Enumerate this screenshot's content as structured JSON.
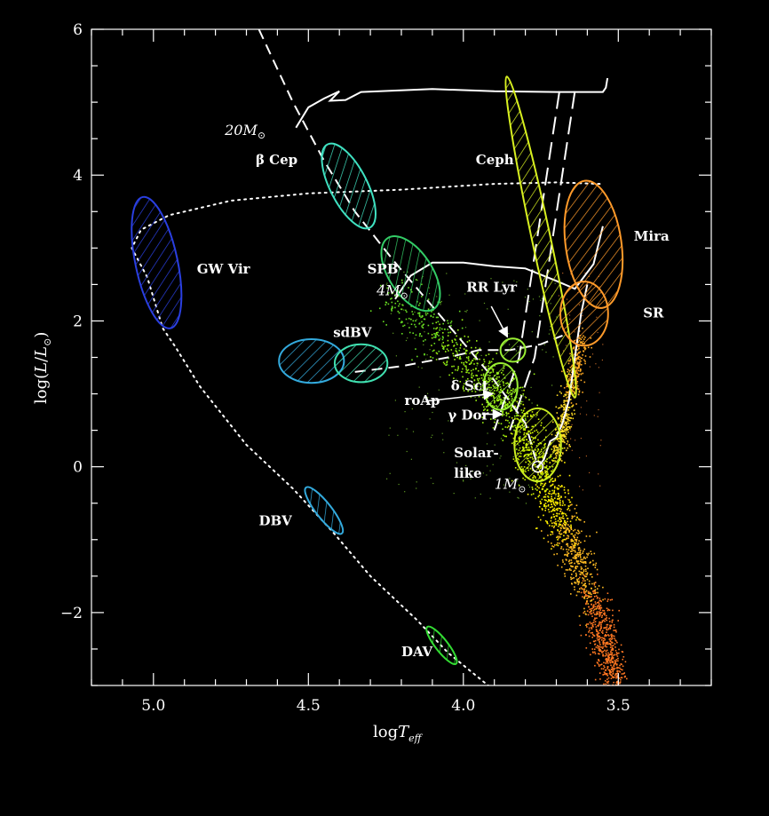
{
  "chart_data": {
    "type": "scatter",
    "title": "",
    "xlabel_main": "log",
    "xlabel_T": "T",
    "xlabel_sub": "eff",
    "ylabel_prefix": "log(",
    "ylabel_L": "L",
    "ylabel_slash": "/",
    "ylabel_Lsun": "L",
    "ylabel_suffix": ")",
    "xlim": [
      5.2,
      3.2
    ],
    "ylim": [
      -3.0,
      6.0
    ],
    "x_reversed": true,
    "x_ticks": [
      5.0,
      4.5,
      4.0,
      3.5
    ],
    "x_tick_labels": [
      "5.0",
      "4.5",
      "4.0",
      "3.5"
    ],
    "y_ticks": [
      -2,
      0,
      2,
      4,
      6
    ],
    "y_tick_labels": [
      "−2",
      "0",
      "2",
      "4",
      "6"
    ],
    "background": "#000000",
    "regions": [
      {
        "label": "GW Vir",
        "color": "#2a3fe0",
        "cx": 4.99,
        "cy": 2.8,
        "rx": 0.068,
        "ry": 0.92,
        "rot": -12
      },
      {
        "label": "β Cep",
        "color": "#3fe0c0",
        "cx": 4.37,
        "cy": 3.85,
        "rx": 0.06,
        "ry": 0.64,
        "rot": -27
      },
      {
        "label": "SPB",
        "color": "#33cc66",
        "cx": 4.17,
        "cy": 2.65,
        "rx": 0.07,
        "ry": 0.58,
        "rot": -33
      },
      {
        "label": "sdBV",
        "color": "#33aadd",
        "cx": 4.49,
        "cy": 1.45,
        "rx": 0.105,
        "ry": 0.3,
        "rot": 0
      },
      {
        "label": "sdBV",
        "color": "#40e0b0",
        "cx": 4.33,
        "cy": 1.42,
        "rx": 0.085,
        "ry": 0.26,
        "rot": 0
      },
      {
        "label": "Ceph",
        "color": "#d8f020",
        "cx": 3.75,
        "cy": 3.15,
        "rx": 0.03,
        "ry": 2.25,
        "rot": -12
      },
      {
        "label": "Mira",
        "color": "#ff9a2a",
        "cx": 3.58,
        "cy": 3.05,
        "rx": 0.09,
        "ry": 0.88,
        "rot": -8
      },
      {
        "label": "SR",
        "color": "#ff9a2a",
        "cx": 3.61,
        "cy": 2.1,
        "rx": 0.077,
        "ry": 0.44,
        "rot": 0
      },
      {
        "label": "RR Lyr",
        "color": "#99ee33",
        "cx": 3.84,
        "cy": 1.6,
        "rx": 0.04,
        "ry": 0.16,
        "rot": 0
      },
      {
        "label": "δ Sct",
        "color": "#99ee33",
        "cx": 3.88,
        "cy": 1.1,
        "rx": 0.055,
        "ry": 0.32,
        "rot": 0
      },
      {
        "label": "Solar-like",
        "color": "#ccee22",
        "cx": 3.76,
        "cy": 0.3,
        "rx": 0.075,
        "ry": 0.5,
        "rot": 0
      },
      {
        "label": "DBV",
        "color": "#33aadd",
        "cx": 4.45,
        "cy": -0.6,
        "rx": 0.025,
        "ry": 0.4,
        "rot": -38
      },
      {
        "label": "DAV",
        "color": "#33dd33",
        "cx": 4.07,
        "cy": -2.45,
        "rx": 0.02,
        "ry": 0.32,
        "rot": -38
      }
    ],
    "labels": [
      {
        "text": "GW Vir",
        "x": 4.86,
        "y": 2.65,
        "style": "bold"
      },
      {
        "text": "β Cep",
        "x": 4.67,
        "y": 4.15,
        "style": "bold"
      },
      {
        "text": "Ceph",
        "x": 3.96,
        "y": 4.15,
        "style": "bold"
      },
      {
        "text": "Mira",
        "x": 3.45,
        "y": 3.1,
        "style": "bold"
      },
      {
        "text": "SPB",
        "x": 4.31,
        "y": 2.65,
        "style": "bold"
      },
      {
        "text": "RR Lyr",
        "x": 3.99,
        "y": 2.4,
        "style": "bold"
      },
      {
        "text": "SR",
        "x": 3.42,
        "y": 2.05,
        "style": "bold"
      },
      {
        "text": "sdBV",
        "x": 4.42,
        "y": 1.78,
        "style": "bold"
      },
      {
        "text": "δ Sct",
        "x": 4.04,
        "y": 1.05,
        "style": "bold"
      },
      {
        "text": "roAp",
        "x": 4.19,
        "y": 0.85,
        "style": "bold"
      },
      {
        "text": "γ Dor",
        "x": 4.05,
        "y": 0.65,
        "style": "bold"
      },
      {
        "text": "Solar-",
        "x": 4.03,
        "y": 0.13,
        "style": "bold"
      },
      {
        "text": "like",
        "x": 4.03,
        "y": -0.15,
        "style": "bold"
      },
      {
        "text": "DBV",
        "x": 4.66,
        "y": -0.8,
        "style": "bold"
      },
      {
        "text": "DAV",
        "x": 4.2,
        "y": -2.6,
        "style": "bold"
      }
    ],
    "mass_labels": [
      {
        "num": "20",
        "sym": "M",
        "x": 4.77,
        "y": 4.55
      },
      {
        "num": "4",
        "sym": "M",
        "x": 4.28,
        "y": 2.35
      },
      {
        "num": "1",
        "sym": "M",
        "x": 3.9,
        "y": -0.3
      }
    ],
    "tracks": [
      {
        "name": "main-sequence",
        "style": "dashed",
        "points": [
          [
            4.66,
            6.0
          ],
          [
            4.55,
            5.0
          ],
          [
            4.45,
            4.2
          ],
          [
            4.35,
            3.5
          ],
          [
            4.22,
            2.8
          ],
          [
            4.1,
            2.2
          ],
          [
            4.0,
            1.7
          ],
          [
            3.92,
            1.3
          ],
          [
            3.86,
            0.95
          ],
          [
            3.8,
            0.6
          ],
          [
            3.76,
            0.0
          ]
        ]
      },
      {
        "name": "20Msun-track",
        "style": "solid",
        "points": [
          [
            4.54,
            4.65
          ],
          [
            4.5,
            4.93
          ],
          [
            4.45,
            5.05
          ],
          [
            4.4,
            5.15
          ],
          [
            4.43,
            5.02
          ],
          [
            4.38,
            5.03
          ],
          [
            4.33,
            5.14
          ],
          [
            4.1,
            5.18
          ],
          [
            3.9,
            5.15
          ],
          [
            3.7,
            5.14
          ],
          [
            3.55,
            5.14
          ],
          [
            3.54,
            5.2
          ],
          [
            3.535,
            5.33
          ]
        ]
      },
      {
        "name": "4Msun-track",
        "style": "solid",
        "points": [
          [
            4.22,
            2.3
          ],
          [
            4.17,
            2.62
          ],
          [
            4.1,
            2.8
          ],
          [
            4.0,
            2.8
          ],
          [
            3.9,
            2.75
          ],
          [
            3.8,
            2.72
          ],
          [
            3.7,
            2.55
          ],
          [
            3.64,
            2.44
          ],
          [
            3.58,
            2.78
          ],
          [
            3.55,
            3.3
          ]
        ]
      },
      {
        "name": "1Msun-track",
        "style": "solid",
        "points": [
          [
            3.76,
            0.0
          ],
          [
            3.74,
            0.1
          ],
          [
            3.72,
            0.35
          ],
          [
            3.7,
            0.4
          ],
          [
            3.68,
            0.6
          ],
          [
            3.66,
            0.9
          ],
          [
            3.64,
            1.5
          ],
          [
            3.62,
            2.1
          ],
          [
            3.6,
            2.5
          ]
        ]
      },
      {
        "name": "hb-track",
        "style": "dashed",
        "points": [
          [
            4.35,
            1.3
          ],
          [
            4.2,
            1.38
          ],
          [
            4.05,
            1.5
          ],
          [
            3.95,
            1.6
          ],
          [
            3.85,
            1.6
          ],
          [
            3.75,
            1.68
          ],
          [
            3.68,
            1.8
          ]
        ]
      },
      {
        "name": "wd-cooling",
        "style": "dotted",
        "points": [
          [
            3.56,
            3.88
          ],
          [
            3.7,
            3.9
          ],
          [
            3.9,
            3.88
          ],
          [
            4.2,
            3.8
          ],
          [
            4.5,
            3.75
          ],
          [
            4.75,
            3.65
          ],
          [
            4.95,
            3.45
          ],
          [
            5.04,
            3.25
          ],
          [
            5.07,
            3.0
          ],
          [
            5.02,
            2.6
          ],
          [
            4.97,
            1.9
          ],
          [
            4.93,
            1.65
          ],
          [
            4.85,
            1.1
          ],
          [
            4.7,
            0.3
          ],
          [
            4.55,
            -0.3
          ],
          [
            4.42,
            -0.9
          ],
          [
            4.3,
            -1.5
          ],
          [
            4.15,
            -2.1
          ],
          [
            4.05,
            -2.55
          ],
          [
            3.92,
            -3.0
          ]
        ]
      }
    ],
    "instability_strip": [
      {
        "points": [
          [
            3.69,
            5.15
          ],
          [
            3.82,
            1.5
          ],
          [
            3.9,
            0.5
          ]
        ]
      },
      {
        "points": [
          [
            3.64,
            5.15
          ],
          [
            3.77,
            1.5
          ],
          [
            3.85,
            0.5
          ]
        ]
      }
    ],
    "arrows": [
      {
        "from": [
          3.91,
          2.2
        ],
        "to": [
          3.86,
          1.8
        ]
      },
      {
        "from": [
          4.12,
          0.9
        ],
        "to": [
          3.91,
          1.0
        ]
      },
      {
        "from": [
          3.94,
          0.72
        ],
        "to": [
          3.88,
          0.72
        ]
      }
    ]
  }
}
